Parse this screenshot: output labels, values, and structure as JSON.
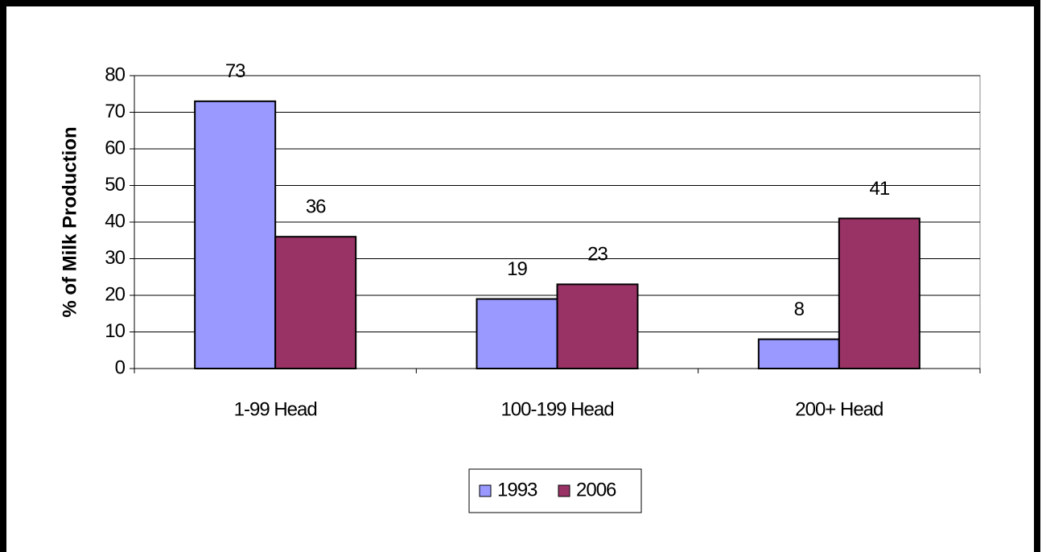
{
  "chart_data": {
    "type": "bar",
    "y_label": "% of Milk Production",
    "categories": [
      "1-99 Head",
      "100-199 Head",
      "200+ Head"
    ],
    "series": [
      {
        "name": "1993",
        "color": "#9999ff",
        "values": [
          73,
          19,
          8
        ]
      },
      {
        "name": "2006",
        "color": "#993366",
        "values": [
          36,
          23,
          41
        ]
      }
    ],
    "ylim": [
      0,
      80
    ],
    "yticks": [
      0,
      10,
      20,
      30,
      40,
      50,
      60,
      70,
      80
    ],
    "grid": true,
    "legend": "bottom"
  }
}
